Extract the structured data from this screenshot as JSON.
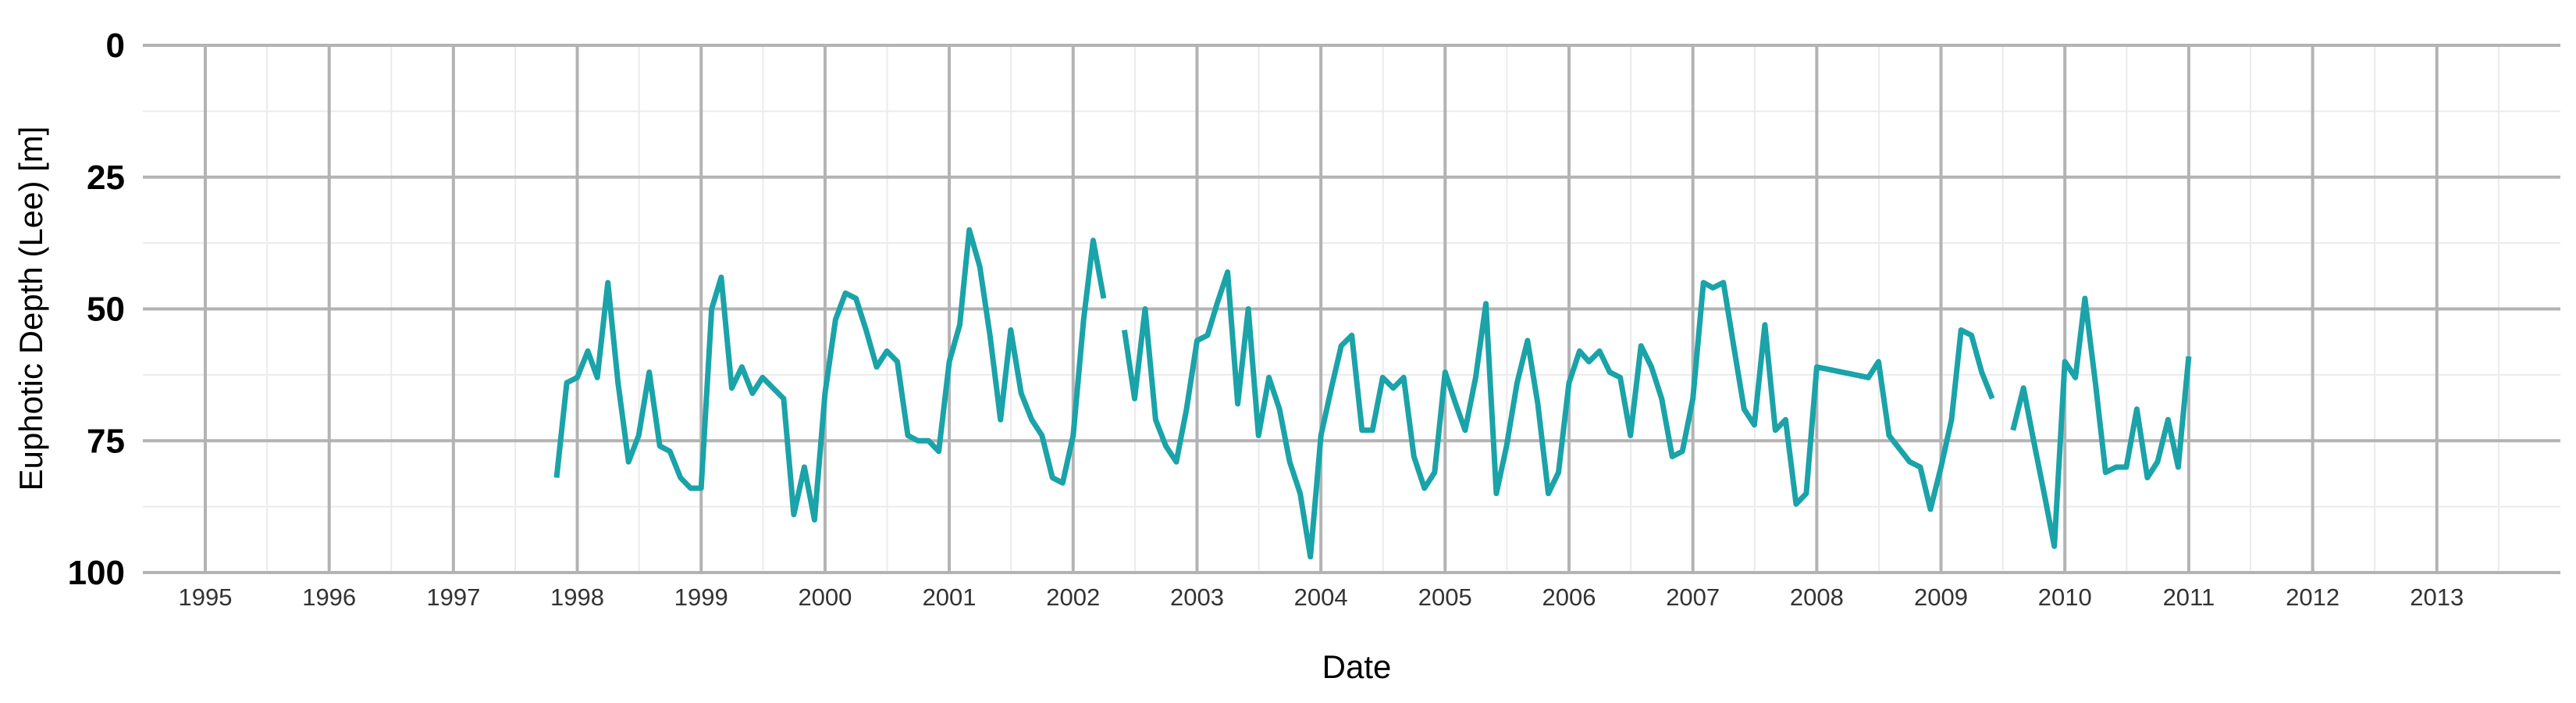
{
  "chart_data": {
    "type": "line",
    "xlabel": "Date",
    "ylabel": "Euphotic Depth (Lee) [m]",
    "x_axis": "date",
    "xlim": [
      "1994-07-01",
      "2013-12-31"
    ],
    "ylim": [
      0,
      100
    ],
    "y_reversed": true,
    "y_ticks": [
      0,
      25,
      50,
      75,
      100
    ],
    "x_ticks": [
      "1995",
      "1996",
      "1997",
      "1998",
      "1999",
      "2000",
      "2001",
      "2002",
      "2003",
      "2004",
      "2005",
      "2006",
      "2007",
      "2008",
      "2009",
      "2010",
      "2011",
      "2012",
      "2013"
    ],
    "grid": true,
    "legend": "none",
    "line_color": "#1aa3a8",
    "series": [
      {
        "segments": [
          [
            [
              "1997-11-01",
              82
            ],
            [
              "1997-12-01",
              64
            ],
            [
              "1998-01-01",
              63
            ],
            [
              "1998-02-01",
              58
            ],
            [
              "1998-03-01",
              63
            ],
            [
              "1998-04-01",
              45
            ],
            [
              "1998-05-01",
              64
            ],
            [
              "1998-06-01",
              79
            ],
            [
              "1998-07-01",
              74
            ],
            [
              "1998-08-01",
              62
            ],
            [
              "1998-09-01",
              76
            ],
            [
              "1998-10-01",
              77
            ],
            [
              "1998-11-01",
              82
            ],
            [
              "1998-12-01",
              84
            ],
            [
              "1999-01-01",
              84
            ],
            [
              "1999-02-01",
              50
            ],
            [
              "1999-03-01",
              44
            ],
            [
              "1999-04-01",
              65
            ],
            [
              "1999-05-01",
              61
            ],
            [
              "1999-06-01",
              66
            ],
            [
              "1999-07-01",
              63
            ],
            [
              "1999-08-01",
              65
            ],
            [
              "1999-09-01",
              67
            ],
            [
              "1999-10-01",
              89
            ],
            [
              "1999-11-01",
              80
            ],
            [
              "1999-12-01",
              90
            ],
            [
              "2000-01-01",
              66
            ],
            [
              "2000-02-01",
              52
            ],
            [
              "2000-03-01",
              47
            ],
            [
              "2000-04-01",
              48
            ],
            [
              "2000-05-01",
              54
            ],
            [
              "2000-06-01",
              61
            ],
            [
              "2000-07-01",
              58
            ],
            [
              "2000-08-01",
              60
            ],
            [
              "2000-09-01",
              74
            ],
            [
              "2000-10-01",
              75
            ],
            [
              "2000-11-01",
              75
            ],
            [
              "2000-12-01",
              77
            ],
            [
              "2001-01-01",
              60
            ],
            [
              "2001-02-01",
              53
            ],
            [
              "2001-03-01",
              35
            ],
            [
              "2001-04-01",
              42
            ],
            [
              "2001-05-01",
              55
            ],
            [
              "2001-06-01",
              71
            ],
            [
              "2001-07-01",
              54
            ],
            [
              "2001-08-01",
              66
            ],
            [
              "2001-09-01",
              71
            ],
            [
              "2001-10-01",
              74
            ],
            [
              "2001-11-01",
              82
            ],
            [
              "2001-12-01",
              83
            ],
            [
              "2002-01-01",
              74
            ],
            [
              "2002-02-01",
              52
            ],
            [
              "2002-03-01",
              37
            ],
            [
              "2002-04-01",
              48
            ]
          ],
          [
            [
              "2002-06-01",
              54
            ],
            [
              "2002-07-01",
              67
            ],
            [
              "2002-08-01",
              50
            ],
            [
              "2002-09-01",
              71
            ],
            [
              "2002-10-01",
              76
            ],
            [
              "2002-11-01",
              79
            ],
            [
              "2002-12-01",
              69
            ],
            [
              "2003-01-01",
              56
            ],
            [
              "2003-02-01",
              55
            ],
            [
              "2003-03-01",
              49
            ],
            [
              "2003-04-01",
              43
            ],
            [
              "2003-05-01",
              68
            ],
            [
              "2003-06-01",
              50
            ],
            [
              "2003-07-01",
              74
            ],
            [
              "2003-08-01",
              63
            ],
            [
              "2003-09-01",
              69
            ],
            [
              "2003-10-01",
              79
            ],
            [
              "2003-11-01",
              85
            ],
            [
              "2003-12-01",
              97
            ],
            [
              "2004-01-01",
              74
            ],
            [
              "2004-02-01",
              65
            ],
            [
              "2004-03-01",
              57
            ],
            [
              "2004-04-01",
              55
            ],
            [
              "2004-05-01",
              73
            ],
            [
              "2004-06-01",
              73
            ],
            [
              "2004-07-01",
              63
            ],
            [
              "2004-08-01",
              65
            ],
            [
              "2004-09-01",
              63
            ],
            [
              "2004-10-01",
              78
            ],
            [
              "2004-11-01",
              84
            ],
            [
              "2004-12-01",
              81
            ],
            [
              "2005-01-01",
              62
            ],
            [
              "2005-02-01",
              68
            ],
            [
              "2005-03-01",
              73
            ],
            [
              "2005-04-01",
              63
            ],
            [
              "2005-05-01",
              49
            ],
            [
              "2005-06-01",
              85
            ],
            [
              "2005-07-01",
              76
            ],
            [
              "2005-08-01",
              64
            ],
            [
              "2005-09-01",
              56
            ],
            [
              "2005-10-01",
              68
            ],
            [
              "2005-11-01",
              85
            ],
            [
              "2005-12-01",
              81
            ],
            [
              "2006-01-01",
              64
            ],
            [
              "2006-02-01",
              58
            ],
            [
              "2006-03-01",
              60
            ],
            [
              "2006-04-01",
              58
            ],
            [
              "2006-05-01",
              62
            ],
            [
              "2006-06-01",
              63
            ],
            [
              "2006-07-01",
              74
            ],
            [
              "2006-08-01",
              57
            ],
            [
              "2006-09-01",
              61
            ],
            [
              "2006-10-01",
              67
            ],
            [
              "2006-11-01",
              78
            ],
            [
              "2006-12-01",
              77
            ],
            [
              "2007-01-01",
              67
            ],
            [
              "2007-02-01",
              45
            ],
            [
              "2007-03-01",
              46
            ],
            [
              "2007-04-01",
              45
            ],
            [
              "2007-05-01",
              57
            ],
            [
              "2007-06-01",
              69
            ],
            [
              "2007-07-01",
              72
            ],
            [
              "2007-08-01",
              53
            ],
            [
              "2007-09-01",
              73
            ],
            [
              "2007-10-01",
              71
            ],
            [
              "2007-11-01",
              87
            ],
            [
              "2007-12-01",
              85
            ],
            [
              "2008-01-01",
              61
            ],
            [
              "2008-06-01",
              63
            ],
            [
              "2008-07-01",
              60
            ],
            [
              "2008-08-01",
              74
            ],
            [
              "2008-10-01",
              79
            ],
            [
              "2008-11-01",
              80
            ],
            [
              "2008-12-01",
              88
            ],
            [
              "2009-01-01",
              80
            ],
            [
              "2009-02-01",
              71
            ],
            [
              "2009-03-01",
              54
            ],
            [
              "2009-04-01",
              55
            ],
            [
              "2009-05-01",
              62
            ],
            [
              "2009-06-01",
              67
            ]
          ],
          [
            [
              "2009-08-01",
              73
            ],
            [
              "2009-09-01",
              65
            ],
            [
              "2009-10-01",
              75
            ],
            [
              "2009-11-01",
              85
            ],
            [
              "2009-12-01",
              95
            ],
            [
              "2010-01-01",
              60
            ],
            [
              "2010-02-01",
              63
            ],
            [
              "2010-03-01",
              48
            ],
            [
              "2010-04-01",
              64
            ],
            [
              "2010-05-01",
              81
            ],
            [
              "2010-06-01",
              80
            ],
            [
              "2010-07-01",
              80
            ],
            [
              "2010-08-01",
              69
            ],
            [
              "2010-09-01",
              82
            ],
            [
              "2010-10-01",
              79
            ],
            [
              "2010-11-01",
              71
            ],
            [
              "2010-12-01",
              80
            ],
            [
              "2011-01-01",
              59
            ]
          ]
        ]
      }
    ]
  }
}
